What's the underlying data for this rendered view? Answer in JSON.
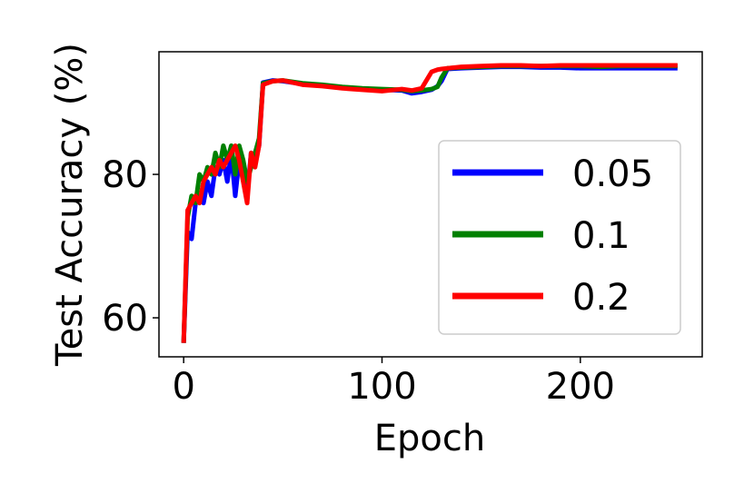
{
  "chart_data": {
    "type": "line",
    "x_label": "Epoch",
    "y_label": "Test Accuracy (%)",
    "x": [
      0,
      2,
      4,
      6,
      8,
      10,
      12,
      14,
      16,
      18,
      20,
      22,
      24,
      26,
      28,
      30,
      32,
      34,
      36,
      38,
      40,
      45,
      50,
      60,
      70,
      80,
      90,
      100,
      110,
      115,
      120,
      125,
      128,
      130,
      133,
      140,
      150,
      160,
      170,
      180,
      190,
      200,
      210,
      220,
      230,
      240,
      249
    ],
    "series": [
      {
        "name": "0.05",
        "color": "#0000ff",
        "values": [
          56.5,
          72,
          71,
          76,
          77,
          76,
          79,
          77,
          81,
          80,
          82,
          79,
          83,
          77,
          82,
          80,
          77,
          83,
          82,
          84,
          92.8,
          93.1,
          93,
          92.6,
          92.4,
          92.1,
          91.9,
          91.8,
          91.7,
          91.3,
          91.5,
          91.8,
          92.3,
          93,
          94.7,
          94.8,
          94.9,
          95,
          95,
          94.9,
          94.9,
          94.8,
          94.8,
          94.8,
          94.8,
          94.8,
          94.8
        ]
      },
      {
        "name": "0.1",
        "color": "#008000",
        "values": [
          56.5,
          74,
          77,
          76,
          80,
          79,
          81,
          80,
          83,
          81,
          84,
          82,
          84,
          80,
          84,
          82,
          79,
          81,
          83,
          85,
          92.7,
          93,
          93.1,
          92.7,
          92.5,
          92.2,
          92,
          91.9,
          91.8,
          91.6,
          91.7,
          91.9,
          92.2,
          93.5,
          94.8,
          94.9,
          95,
          95.1,
          95.1,
          95.1,
          95.1,
          95.1,
          95,
          95.1,
          95.1,
          95.1,
          95.1
        ]
      },
      {
        "name": "0.2",
        "color": "#ff0000",
        "values": [
          56.5,
          75,
          76,
          77,
          76,
          79,
          80,
          81,
          80,
          82,
          81,
          82,
          83,
          84,
          82,
          79,
          76,
          83,
          81,
          84,
          92.5,
          93,
          93.1,
          92.5,
          92.3,
          92,
          91.8,
          91.6,
          91.9,
          91.7,
          92,
          94.3,
          94.6,
          94.7,
          94.8,
          95,
          95.1,
          95.2,
          95.2,
          95.1,
          95.2,
          95.2,
          95.2,
          95.2,
          95.2,
          95.2,
          95.2
        ]
      }
    ],
    "xlim": [
      -12.45,
      261.45
    ],
    "ylim": [
      54.56,
      97.1
    ],
    "xticks": [
      0,
      100,
      200
    ],
    "yticks": [
      60,
      80
    ],
    "legend": "lower right"
  }
}
